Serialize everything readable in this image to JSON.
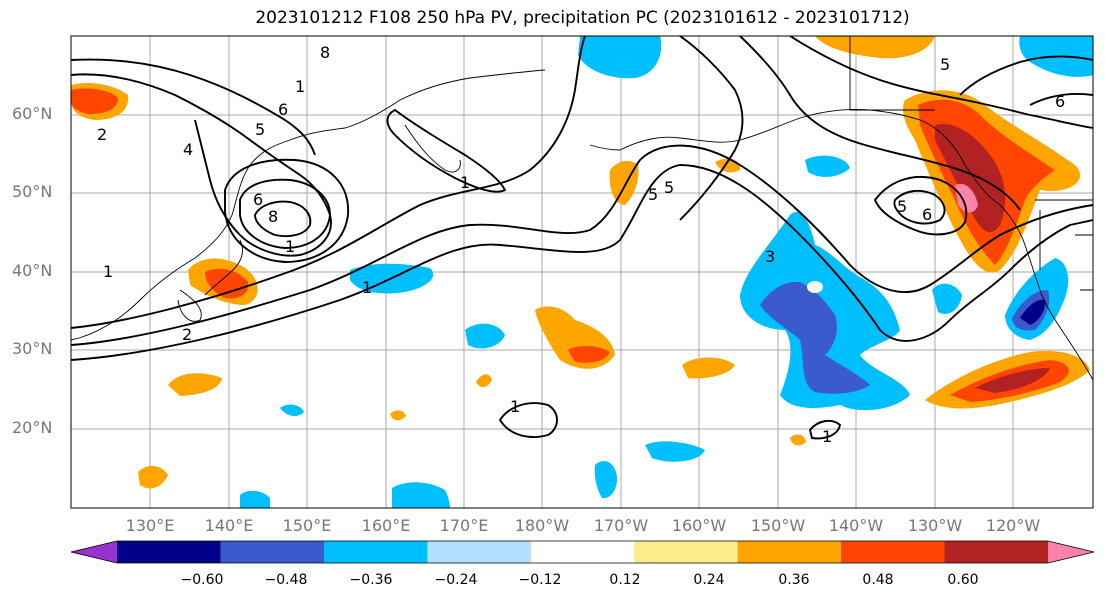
{
  "title": "2023101212 F108 250 hPa PV, precipitation PC (2023101612 - 2023101712)",
  "map": {
    "lat_labels": [
      "60°N",
      "50°N",
      "40°N",
      "30°N",
      "20°N"
    ],
    "lon_labels": [
      "130°E",
      "140°E",
      "150°E",
      "160°E",
      "170°E",
      "180°W",
      "170°W",
      "160°W",
      "150°W",
      "140°W",
      "130°W",
      "120°W"
    ],
    "contour_labels": [
      "1",
      "2",
      "3",
      "4",
      "5",
      "6",
      "8"
    ]
  },
  "colorbar": {
    "ticks": [
      "−0.60",
      "−0.48",
      "−0.36",
      "−0.24",
      "−0.12",
      "0.12",
      "0.24",
      "0.36",
      "0.48",
      "0.60"
    ],
    "colors": [
      "#9932cc",
      "#00008b",
      "#3b5bcc",
      "#00bfff",
      "#b0e2ff",
      "#ffffff",
      "#ffec8b",
      "#ffa500",
      "#ff4500",
      "#b22222",
      "#ff82ab"
    ]
  }
}
